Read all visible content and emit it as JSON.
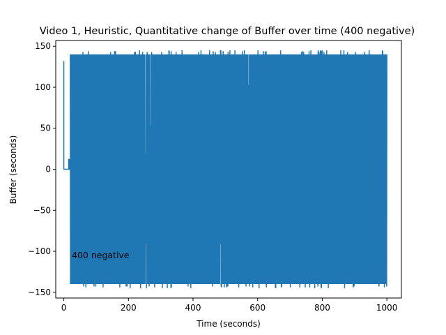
{
  "chart_data": {
    "type": "line",
    "title": "Video 1, Heuristic, Quantitative change of Buffer over time (400 negative)",
    "xlabel": "Time (seconds)",
    "ylabel": "Buffer (seconds)",
    "xlim": [
      -25,
      1045
    ],
    "ylim": [
      -157,
      157
    ],
    "xticks": [
      0,
      200,
      400,
      600,
      800,
      1000
    ],
    "yticks": [
      -150,
      -100,
      -50,
      0,
      50,
      100,
      150
    ],
    "grid": false,
    "legend": "none",
    "annotation": {
      "text": "400 negative",
      "x": 0,
      "y": -107
    },
    "series": [
      {
        "color": "#1f77b4",
        "initial_points": [
          [
            0,
            132
          ],
          [
            0,
            0
          ],
          [
            15,
            0
          ],
          [
            15,
            12
          ],
          [
            18,
            12
          ],
          [
            18,
            0
          ],
          [
            20,
            0
          ]
        ],
        "oscillation": {
          "t_start": 20,
          "t_end": 1000,
          "upper": 140,
          "lower": -140,
          "upper_outliers": [
            143,
            144,
            145
          ],
          "lower_outliers": [
            -143,
            -144,
            -145
          ],
          "description": "rapid oscillation between about -140 and 140 seconds from t=20 to t=1000"
        }
      }
    ]
  }
}
